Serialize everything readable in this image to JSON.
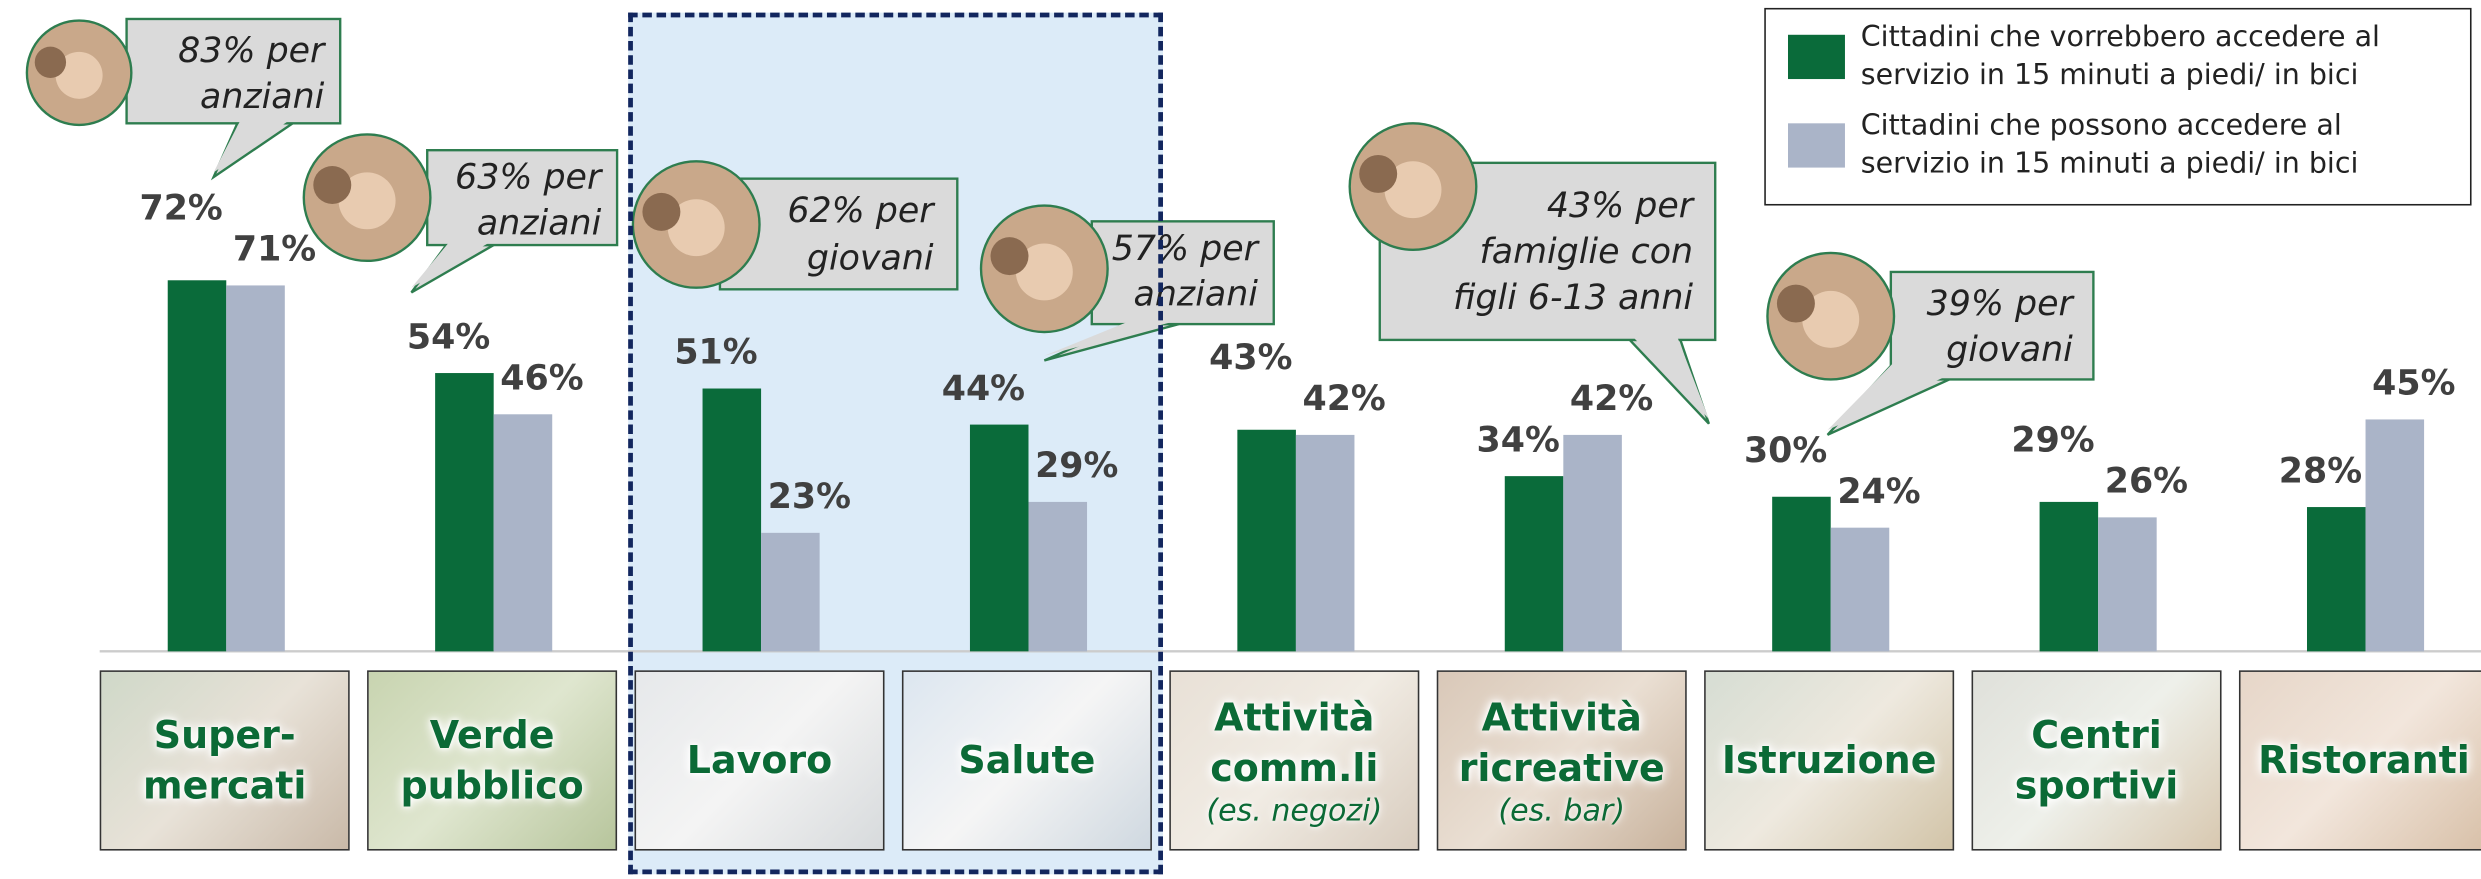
{
  "chart_data": {
    "type": "bar",
    "categories": [
      "Super-mercati",
      "Verde pubblico",
      "Lavoro",
      "Salute",
      "Attività comm.li",
      "Attività ricreative",
      "Istruzione",
      "Centri sportivi",
      "Ristoranti"
    ],
    "category_notes": [
      null,
      null,
      null,
      null,
      "(es. negozi)",
      "(es. bar)",
      null,
      null,
      null
    ],
    "series": [
      {
        "name": "Cittadini che vorrebbero accedere al servizio in 15 minuti a piedi/ in bici",
        "color": "#0a6b3a",
        "values": [
          72,
          54,
          51,
          44,
          43,
          34,
          30,
          29,
          28
        ],
        "value_labels": [
          "72%",
          "54%",
          "51%",
          "44%",
          "43%",
          "34%",
          "30%",
          "29%",
          "28%"
        ]
      },
      {
        "name": "Cittadini che possono accedere al servizio in 15 minuti a piedi/ in bici",
        "color": "#aab4c8",
        "values": [
          71,
          46,
          23,
          29,
          42,
          42,
          24,
          26,
          45
        ],
        "value_labels": [
          "71%",
          "46%",
          "23%",
          "29%",
          "42%",
          "42%",
          "24%",
          "26%",
          "45%"
        ]
      }
    ],
    "callouts": [
      {
        "lines": [
          "83% per",
          "anziani"
        ]
      },
      {
        "lines": [
          "63% per",
          "anziani"
        ]
      },
      {
        "lines": [
          "62% per",
          "giovani"
        ]
      },
      {
        "lines": [
          "57% per",
          "anziani"
        ]
      },
      {
        "lines": [
          "43% per",
          "famiglie con",
          "figli 6-13 anni"
        ]
      },
      {
        "lines": [
          "39% per",
          "giovani"
        ]
      }
    ]
  }
}
